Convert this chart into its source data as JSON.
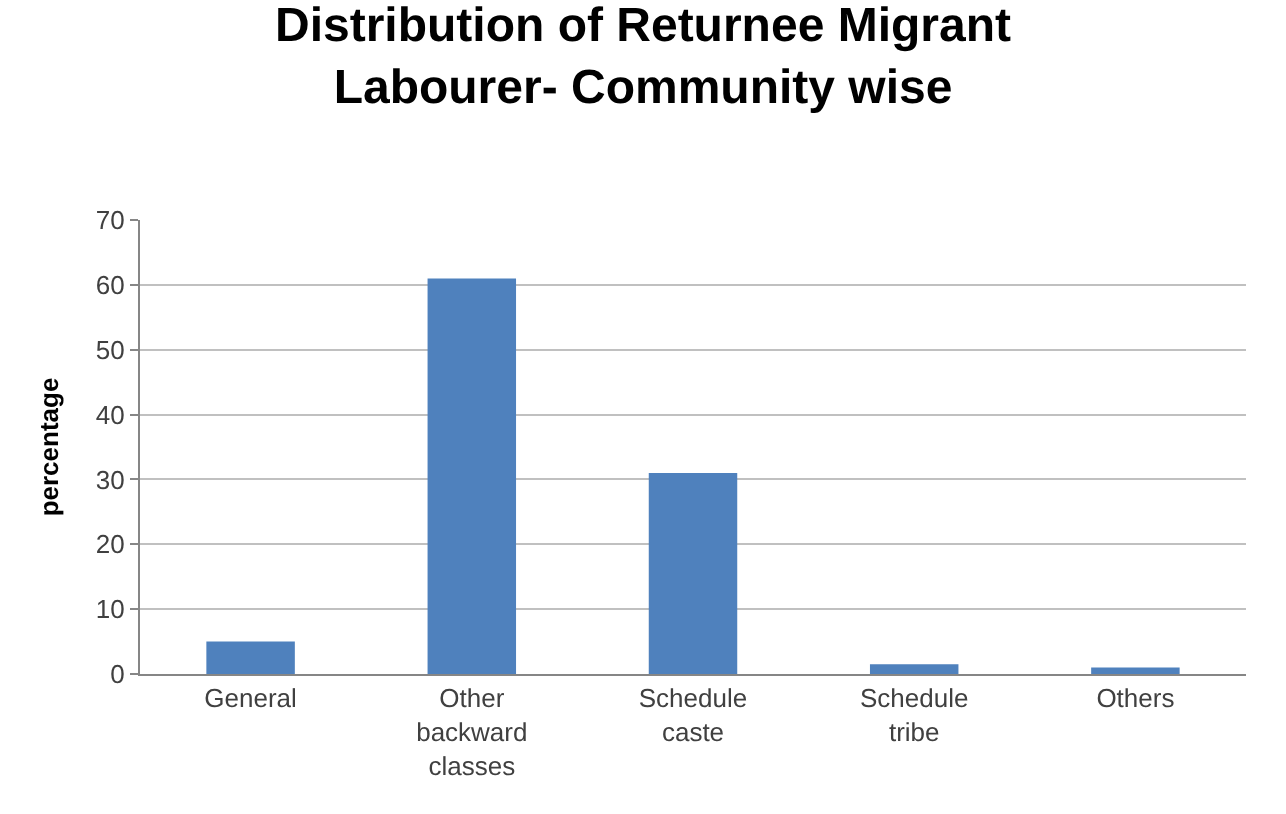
{
  "chart_data": {
    "type": "bar",
    "title": "Distribution of Returnee Migrant Labourer- Community wise",
    "ylabel": "percentage",
    "categories": [
      "General",
      "Other backward classes",
      "Schedule caste",
      "Schedule tribe",
      "Others"
    ],
    "values": [
      5,
      61,
      31,
      1.5,
      1
    ],
    "color": "#4f81bd",
    "ylim": [
      0,
      70
    ],
    "yticks": [
      0,
      10,
      20,
      30,
      40,
      50,
      60,
      70
    ],
    "grid": "y"
  }
}
